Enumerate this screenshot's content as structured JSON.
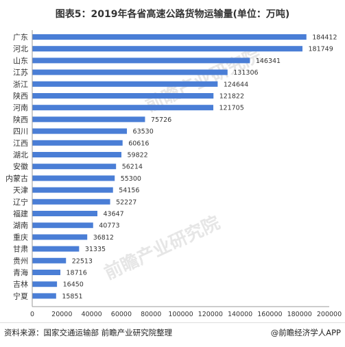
{
  "header": {
    "title": "图表5：2019年各省高速公路货物运输量(单位：万吨)"
  },
  "footer": {
    "source": "资料来源：国家交通运输部 前瞻产业研究院整理",
    "credit": "@前瞻经济学人APP"
  },
  "watermark": {
    "text": "前瞻产业研究院"
  },
  "colors": {
    "bar": "#4a7ed6",
    "axis": "#999999",
    "text": "#333333"
  },
  "chart_data": {
    "type": "bar",
    "orientation": "horizontal",
    "categories": [
      "广东",
      "河北",
      "山东",
      "江苏",
      "浙江",
      "陕西",
      "河南",
      "陕西",
      "四川",
      "江西",
      "湖北",
      "安徽",
      "内蒙古",
      "天津",
      "辽宁",
      "福建",
      "湖南",
      "重庆",
      "甘肃",
      "贵州",
      "青海",
      "吉林",
      "宁夏"
    ],
    "values": [
      184412,
      181749,
      146341,
      131306,
      124644,
      121822,
      121705,
      75726,
      63530,
      60616,
      59822,
      56214,
      55300,
      54156,
      52227,
      43647,
      40773,
      36812,
      31335,
      22513,
      18716,
      16450,
      15851
    ],
    "xlim": [
      0,
      200000
    ],
    "xticks": [
      0,
      20000,
      40000,
      60000,
      80000,
      100000,
      120000,
      140000,
      160000,
      180000,
      200000
    ],
    "grid": false,
    "data_labels": true
  }
}
